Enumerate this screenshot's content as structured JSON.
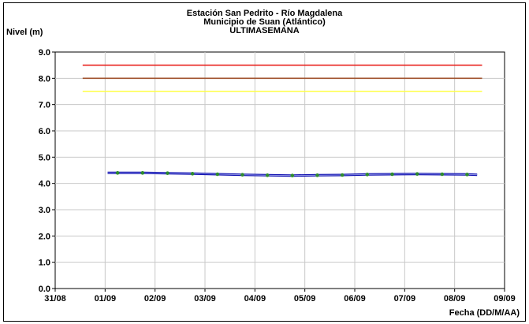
{
  "chart_data": {
    "type": "line",
    "title": "Estación San Pedrito - Río Magdalena",
    "subtitle": "Municipio de Suan (Atlántico)",
    "subtitle2": "ULTIMASEMANA",
    "ylabel": "Nivel (m)",
    "xlabel": "Fecha (DD/M/AA)",
    "ylim": [
      0,
      9
    ],
    "yticks": [
      "0.0",
      "1.0",
      "2.0",
      "3.0",
      "4.0",
      "5.0",
      "6.0",
      "7.0",
      "8.0",
      "9.0"
    ],
    "xlim": [
      0,
      9
    ],
    "xticks": [
      "31/08",
      "01/09",
      "02/09",
      "03/09",
      "04/09",
      "05/09",
      "06/09",
      "07/09",
      "08/09",
      "09/09"
    ],
    "grid": true,
    "thresholds": [
      {
        "value": 8.5,
        "color": "#e8231f",
        "from": 0.55,
        "to": 8.55
      },
      {
        "value": 8.0,
        "color": "#a0522d",
        "from": 0.55,
        "to": 8.55
      },
      {
        "value": 7.5,
        "color": "#ffff44",
        "from": 0.55,
        "to": 8.55
      }
    ],
    "series": [
      {
        "color": "#2020cc",
        "x": [
          1.05,
          1.25,
          1.75,
          2.25,
          2.75,
          3.25,
          3.75,
          4.25,
          4.75,
          5.25,
          5.75,
          6.25,
          6.75,
          7.25,
          7.75,
          8.25,
          8.45
        ],
        "y": [
          4.4,
          4.4,
          4.4,
          4.39,
          4.37,
          4.35,
          4.33,
          4.31,
          4.3,
          4.31,
          4.32,
          4.34,
          4.35,
          4.36,
          4.35,
          4.34,
          4.33
        ]
      }
    ],
    "markers": {
      "color": "#2e8b2e",
      "x": [
        1.25,
        1.75,
        2.25,
        2.75,
        3.25,
        3.75,
        4.25,
        4.75,
        5.25,
        5.75,
        6.25,
        6.75,
        7.25,
        7.75,
        8.25
      ],
      "y": [
        4.4,
        4.4,
        4.39,
        4.37,
        4.35,
        4.33,
        4.31,
        4.3,
        4.31,
        4.32,
        4.34,
        4.35,
        4.36,
        4.35,
        4.34
      ]
    }
  }
}
